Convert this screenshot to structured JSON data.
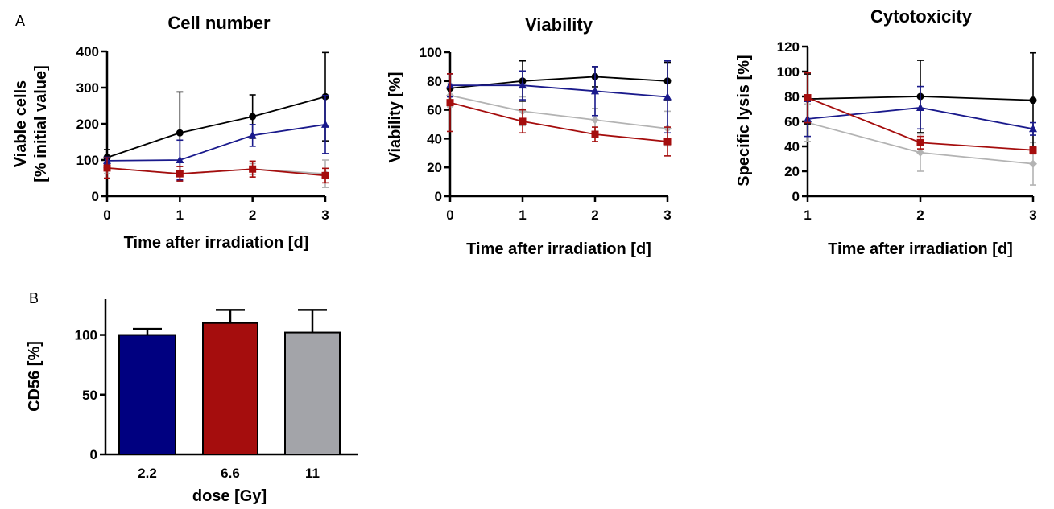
{
  "panel_labels": {
    "a": "A",
    "b": "B"
  },
  "colors": {
    "black": "#000000",
    "blue": "#1a1a8c",
    "red": "#a50d0d",
    "gray": "#b3b3b3",
    "bar_gray": "#a3a4a9",
    "bar_blue": "#000080"
  },
  "chart_data": [
    {
      "id": "cell-number",
      "type": "line",
      "title": "Cell number",
      "xlabel": "Time after irradiation [d]",
      "ylabel_lines": [
        "Viable cells",
        "[% initial value]"
      ],
      "x": [
        0,
        1,
        2,
        3
      ],
      "xlim": [
        0,
        3
      ],
      "ylim": [
        0,
        400
      ],
      "xticks": [
        "0",
        "1",
        "2",
        "3"
      ],
      "yticks": [
        "0",
        "100",
        "200",
        "300",
        "400"
      ],
      "series": [
        {
          "color": "#000000",
          "marker": "circle",
          "values": [
            107,
            175,
            220,
            275
          ],
          "err": [
            22,
            113,
            60,
            122
          ]
        },
        {
          "color": "#1a1a8c",
          "marker": "triangle",
          "values": [
            98,
            100,
            168,
            198
          ],
          "err": [
            10,
            55,
            30,
            80
          ]
        },
        {
          "color": "#b3b3b3",
          "marker": "diamond",
          "values": [
            78,
            62,
            75,
            62
          ],
          "err": [
            15,
            20,
            15,
            38
          ]
        },
        {
          "color": "#a50d0d",
          "marker": "square",
          "values": [
            78,
            62,
            75,
            57
          ],
          "err": [
            28,
            20,
            22,
            20
          ]
        }
      ]
    },
    {
      "id": "viability",
      "type": "line",
      "title": "Viability",
      "xlabel": "Time after irradiation [d]",
      "ylabel_lines": [
        "Viability [%]"
      ],
      "x": [
        0,
        1,
        2,
        3
      ],
      "xlim": [
        0,
        3
      ],
      "ylim": [
        0,
        100
      ],
      "xticks": [
        "0",
        "1",
        "2",
        "3"
      ],
      "yticks": [
        "0",
        "20",
        "40",
        "60",
        "80",
        "100"
      ],
      "series": [
        {
          "color": "#000000",
          "marker": "circle",
          "values": [
            75,
            80,
            83,
            80
          ],
          "err": [
            10,
            14,
            7,
            13
          ]
        },
        {
          "color": "#1a1a8c",
          "marker": "triangle",
          "values": [
            77,
            77,
            73,
            69
          ],
          "err": [
            8,
            10,
            17,
            25
          ]
        },
        {
          "color": "#b3b3b3",
          "marker": "diamond",
          "values": [
            70,
            59,
            53,
            47
          ],
          "err": [
            8,
            10,
            8,
            12
          ]
        },
        {
          "color": "#a50d0d",
          "marker": "square",
          "values": [
            65,
            52,
            43,
            38
          ],
          "err": [
            20,
            8,
            5,
            10
          ]
        }
      ]
    },
    {
      "id": "cytotoxicity",
      "type": "line",
      "title": "Cytotoxicity",
      "xlabel": "Time after irradiation [d]",
      "ylabel_lines": [
        "Specific lysis [%]"
      ],
      "x": [
        1,
        2,
        3
      ],
      "xlim": [
        1,
        3
      ],
      "ylim": [
        0,
        120
      ],
      "xticks": [
        "1",
        "2",
        "3"
      ],
      "yticks": [
        "0",
        "20",
        "40",
        "60",
        "80",
        "100",
        "120"
      ],
      "series": [
        {
          "color": "#000000",
          "marker": "circle",
          "values": [
            78,
            80,
            77
          ],
          "err": [
            20,
            29,
            38
          ]
        },
        {
          "color": "#1a1a8c",
          "marker": "triangle",
          "values": [
            62,
            71,
            54
          ],
          "err": [
            14,
            17,
            5
          ]
        },
        {
          "color": "#a50d0d",
          "marker": "square",
          "values": [
            79,
            43,
            37
          ],
          "err": [
            20,
            5,
            3
          ]
        },
        {
          "color": "#b3b3b3",
          "marker": "diamond",
          "values": [
            59,
            35,
            26
          ],
          "err": [
            15,
            15,
            17
          ]
        }
      ]
    },
    {
      "id": "cd56",
      "type": "bar",
      "xlabel": "dose  [Gy]",
      "ylabel_lines": [
        "CD56 [%]"
      ],
      "categories": [
        "2.2",
        "6.6",
        "11"
      ],
      "values": [
        100,
        110,
        102
      ],
      "err": [
        5,
        11,
        19
      ],
      "colors": [
        "#000080",
        "#a50d0d",
        "#a3a4a9"
      ],
      "ylim": [
        0,
        130
      ],
      "yticks": [
        "0",
        "50",
        "100"
      ]
    }
  ]
}
